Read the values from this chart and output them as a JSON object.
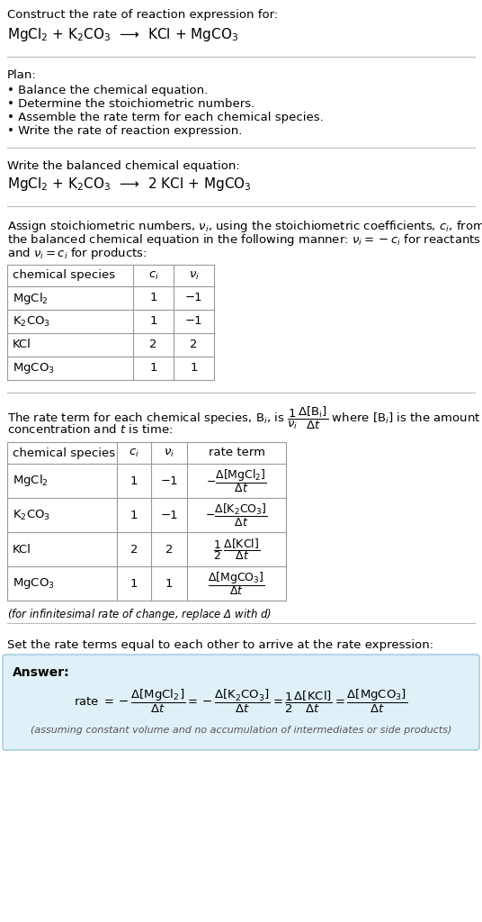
{
  "title_line1": "Construct the rate of reaction expression for:",
  "title_line2": "MgCl$_2$ + K$_2$CO$_3$  ⟶  KCl + MgCO$_3$",
  "plan_header": "Plan:",
  "plan_items": [
    "• Balance the chemical equation.",
    "• Determine the stoichiometric numbers.",
    "• Assemble the rate term for each chemical species.",
    "• Write the rate of reaction expression."
  ],
  "balanced_header": "Write the balanced chemical equation:",
  "balanced_eq": "MgCl$_2$ + K$_2$CO$_3$  ⟶  2 KCl + MgCO$_3$",
  "stoich_para": "Assign stoichiometric numbers, $\\nu_i$, using the stoichiometric coefficients, $c_i$, from the balanced chemical equation in the following manner: $\\nu_i = -c_i$ for reactants and $\\nu_i = c_i$ for products:",
  "table1_cols": [
    "chemical species",
    "$c_i$",
    "$\\nu_i$"
  ],
  "table1_data": [
    [
      "MgCl$_2$",
      "1",
      "−1"
    ],
    [
      "K$_2$CO$_3$",
      "1",
      "−1"
    ],
    [
      "KCl",
      "2",
      "2"
    ],
    [
      "MgCO$_3$",
      "1",
      "1"
    ]
  ],
  "rate_para_line1": "The rate term for each chemical species, B$_i$, is $\\dfrac{1}{\\nu_i}\\dfrac{\\Delta[\\mathrm{B_i}]}{\\Delta t}$ where [B$_i$] is the amount",
  "rate_para_line2": "concentration and $t$ is time:",
  "table2_cols": [
    "chemical species",
    "$c_i$",
    "$\\nu_i$",
    "rate term"
  ],
  "table2_data": [
    [
      "MgCl$_2$",
      "1",
      "−1",
      "$-\\dfrac{\\Delta[\\mathrm{MgCl_2}]}{\\Delta t}$"
    ],
    [
      "K$_2$CO$_3$",
      "1",
      "−1",
      "$-\\dfrac{\\Delta[\\mathrm{K_2CO_3}]}{\\Delta t}$"
    ],
    [
      "KCl",
      "2",
      "2",
      "$\\dfrac{1}{2}\\,\\dfrac{\\Delta[\\mathrm{KCl}]}{\\Delta t}$"
    ],
    [
      "MgCO$_3$",
      "1",
      "1",
      "$\\dfrac{\\Delta[\\mathrm{MgCO_3}]}{\\Delta t}$"
    ]
  ],
  "infinitesimal_note": "(for infinitesimal rate of change, replace Δ with $d$)",
  "rate_set_header": "Set the rate terms equal to each other to arrive at the rate expression:",
  "answer_label": "Answer:",
  "rate_expression": "rate $= -\\dfrac{\\Delta[\\mathrm{MgCl_2}]}{\\Delta t} = -\\dfrac{\\Delta[\\mathrm{K_2CO_3}]}{\\Delta t} = \\dfrac{1}{2}\\dfrac{\\Delta[\\mathrm{KCl}]}{\\Delta t} = \\dfrac{\\Delta[\\mathrm{MgCO_3}]}{\\Delta t}$",
  "assuming_note": "(assuming constant volume and no accumulation of intermediates or side products)",
  "bg_color": "#ffffff",
  "answer_bg": "#dff0f7",
  "answer_border": "#a8cfe0",
  "table_line_color": "#999999",
  "text_color": "#000000",
  "section_line_color": "#bbbbbb",
  "note_color": "#555555"
}
